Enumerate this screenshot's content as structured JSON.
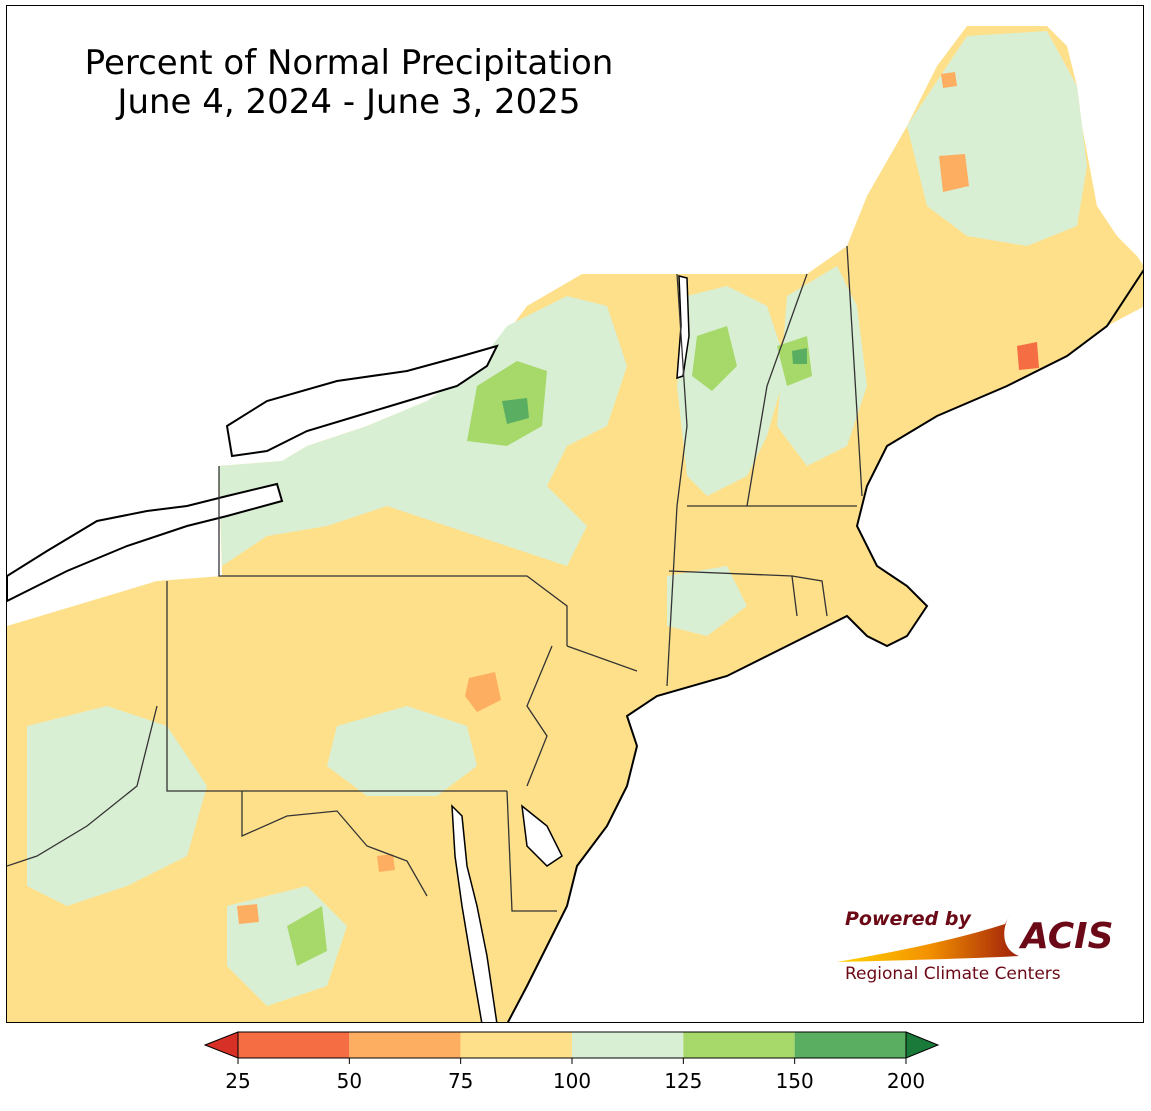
{
  "title": {
    "line1": "Percent of Normal Precipitation",
    "line2": "June 4, 2024 - June 3, 2025"
  },
  "legend": {
    "ticks": [
      "25",
      "50",
      "75",
      "100",
      "125",
      "150",
      "200"
    ],
    "bins": [
      {
        "from": 25,
        "to": 50,
        "color": "#f46d43"
      },
      {
        "from": 50,
        "to": 75,
        "color": "#fdae61"
      },
      {
        "from": 75,
        "to": 100,
        "color": "#fee08b"
      },
      {
        "from": 100,
        "to": 125,
        "color": "#d9efd3"
      },
      {
        "from": 125,
        "to": 150,
        "color": "#a6d96a"
      },
      {
        "from": 150,
        "to": 200,
        "color": "#5aae61"
      }
    ],
    "under_color": "#d73027",
    "over_color": "#1a7a3a"
  },
  "logo": {
    "powered_by": "Powered by",
    "name": "ACIS",
    "subtitle": "Regional Climate Centers",
    "brand_color": "#6b0a16"
  }
}
